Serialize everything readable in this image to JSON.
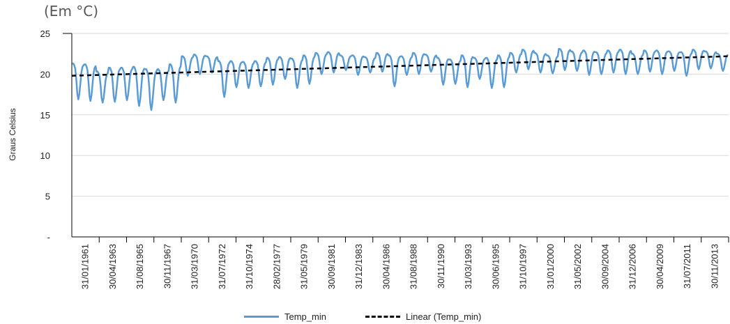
{
  "chart_data": {
    "type": "line",
    "subtitle": "(Em °C)",
    "xlabel": "",
    "ylabel": "Graus Celsius",
    "ylim": [
      0,
      25
    ],
    "yticks": [
      {
        "value": 0,
        "label": "-"
      },
      {
        "value": 5,
        "label": "5"
      },
      {
        "value": 10,
        "label": "10"
      },
      {
        "value": 15,
        "label": "15"
      },
      {
        "value": 20,
        "label": "20"
      },
      {
        "value": 25,
        "label": "25"
      }
    ],
    "xlim": [
      "1961-01-01",
      "2014-12-31"
    ],
    "x_tick_labels": [
      {
        "date": "1961-01-31",
        "label": "31/01/1961"
      },
      {
        "date": "1963-04-30",
        "label": "30/04/1963"
      },
      {
        "date": "1965-08-31",
        "label": "31/08/1965"
      },
      {
        "date": "1967-11-30",
        "label": "30/11/1967"
      },
      {
        "date": "1970-03-31",
        "label": "31/03/1970"
      },
      {
        "date": "1972-07-31",
        "label": "31/07/1972"
      },
      {
        "date": "1974-10-31",
        "label": "31/10/1974"
      },
      {
        "date": "1977-02-28",
        "label": "28/02/1977"
      },
      {
        "date": "1979-05-31",
        "label": "31/05/1979"
      },
      {
        "date": "1981-09-30",
        "label": "30/09/1981"
      },
      {
        "date": "1983-12-31",
        "label": "31/12/1983"
      },
      {
        "date": "1986-04-30",
        "label": "30/04/1986"
      },
      {
        "date": "1988-08-31",
        "label": "31/08/1988"
      },
      {
        "date": "1990-11-30",
        "label": "30/11/1990"
      },
      {
        "date": "1993-03-31",
        "label": "31/03/1993"
      },
      {
        "date": "1995-06-30",
        "label": "30/06/1995"
      },
      {
        "date": "1997-10-31",
        "label": "31/10/1997"
      },
      {
        "date": "2000-01-31",
        "label": "31/01/2000"
      },
      {
        "date": "2002-05-31",
        "label": "31/05/2002"
      },
      {
        "date": "2004-09-30",
        "label": "30/09/2004"
      },
      {
        "date": "2006-12-31",
        "label": "31/12/2006"
      },
      {
        "date": "2009-04-30",
        "label": "30/04/2009"
      },
      {
        "date": "2011-07-31",
        "label": "31/07/2011"
      },
      {
        "date": "2013-11-30",
        "label": "30/11/2013"
      }
    ],
    "grid": "horizontal",
    "legend_position": "bottom",
    "series": [
      {
        "name": "Temp_min",
        "color": "#5b9bd5",
        "style": "solid",
        "monthly_pattern": "annual cycle, July minimum",
        "yearly": [
          {
            "year": 1961,
            "max": 21.3,
            "min": 16.9
          },
          {
            "year": 1962,
            "max": 21.2,
            "min": 16.7
          },
          {
            "year": 1963,
            "max": 20.3,
            "min": 16.5
          },
          {
            "year": 1964,
            "max": 20.8,
            "min": 16.6
          },
          {
            "year": 1965,
            "max": 20.8,
            "min": 16.8
          },
          {
            "year": 1966,
            "max": 20.9,
            "min": 16.1
          },
          {
            "year": 1967,
            "max": 20.6,
            "min": 15.6
          },
          {
            "year": 1968,
            "max": 20.6,
            "min": 16.8
          },
          {
            "year": 1969,
            "max": 21.2,
            "min": 16.5
          },
          {
            "year": 1970,
            "max": 22.2,
            "min": 19.8
          },
          {
            "year": 1971,
            "max": 22.4,
            "min": 20.0
          },
          {
            "year": 1972,
            "max": 22.2,
            "min": 20.2
          },
          {
            "year": 1973,
            "max": 21.6,
            "min": 17.2
          },
          {
            "year": 1974,
            "max": 21.6,
            "min": 18.4
          },
          {
            "year": 1975,
            "max": 21.5,
            "min": 18.3
          },
          {
            "year": 1976,
            "max": 21.6,
            "min": 18.5
          },
          {
            "year": 1977,
            "max": 22.0,
            "min": 18.7
          },
          {
            "year": 1978,
            "max": 22.1,
            "min": 19.4
          },
          {
            "year": 1979,
            "max": 21.9,
            "min": 18.3
          },
          {
            "year": 1980,
            "max": 22.3,
            "min": 18.8
          },
          {
            "year": 1981,
            "max": 22.6,
            "min": 20.0
          },
          {
            "year": 1982,
            "max": 22.7,
            "min": 20.2
          },
          {
            "year": 1983,
            "max": 22.3,
            "min": 20.5
          },
          {
            "year": 1984,
            "max": 22.3,
            "min": 19.9
          },
          {
            "year": 1985,
            "max": 22.1,
            "min": 20.2
          },
          {
            "year": 1986,
            "max": 22.6,
            "min": 20.3
          },
          {
            "year": 1987,
            "max": 22.3,
            "min": 18.5
          },
          {
            "year": 1988,
            "max": 22.2,
            "min": 19.9
          },
          {
            "year": 1989,
            "max": 22.6,
            "min": 20.0
          },
          {
            "year": 1990,
            "max": 22.4,
            "min": 20.3
          },
          {
            "year": 1991,
            "max": 22.0,
            "min": 18.7
          },
          {
            "year": 1992,
            "max": 21.8,
            "min": 18.8
          },
          {
            "year": 1993,
            "max": 22.3,
            "min": 18.4
          },
          {
            "year": 1994,
            "max": 22.0,
            "min": 19.4
          },
          {
            "year": 1995,
            "max": 22.0,
            "min": 18.3
          },
          {
            "year": 1996,
            "max": 22.3,
            "min": 18.4
          },
          {
            "year": 1997,
            "max": 22.6,
            "min": 20.2
          },
          {
            "year": 1998,
            "max": 23.0,
            "min": 20.6
          },
          {
            "year": 1999,
            "max": 22.6,
            "min": 20.2
          },
          {
            "year": 2000,
            "max": 22.3,
            "min": 20.1
          },
          {
            "year": 2001,
            "max": 23.1,
            "min": 20.5
          },
          {
            "year": 2002,
            "max": 22.8,
            "min": 20.4
          },
          {
            "year": 2003,
            "max": 22.9,
            "min": 19.9
          },
          {
            "year": 2004,
            "max": 22.7,
            "min": 20.0
          },
          {
            "year": 2005,
            "max": 22.9,
            "min": 20.2
          },
          {
            "year": 2006,
            "max": 23.0,
            "min": 20.0
          },
          {
            "year": 2007,
            "max": 22.5,
            "min": 20.0
          },
          {
            "year": 2008,
            "max": 22.9,
            "min": 20.3
          },
          {
            "year": 2009,
            "max": 22.9,
            "min": 20.0
          },
          {
            "year": 2010,
            "max": 22.8,
            "min": 20.4
          },
          {
            "year": 2011,
            "max": 22.7,
            "min": 19.8
          },
          {
            "year": 2012,
            "max": 23.0,
            "min": 20.6
          },
          {
            "year": 2013,
            "max": 22.8,
            "min": 20.7
          },
          {
            "year": 2014,
            "max": 22.5,
            "min": 20.4
          }
        ]
      },
      {
        "name": "Linear (Temp_min)",
        "color": "#000000",
        "style": "dashed",
        "points": [
          {
            "x": "1961-01-01",
            "y": 19.8
          },
          {
            "x": "2014-12-31",
            "y": 22.2
          }
        ]
      }
    ]
  }
}
